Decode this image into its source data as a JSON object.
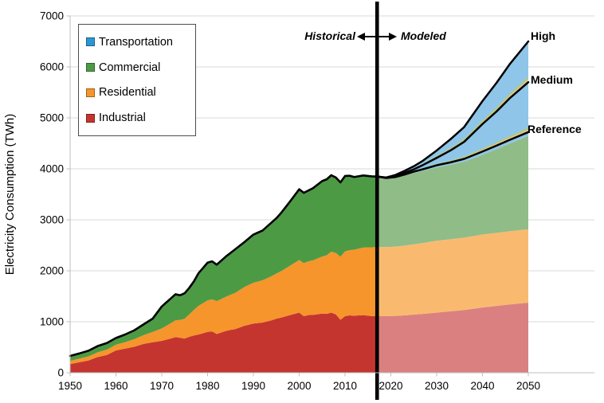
{
  "chart": {
    "y_axis_title": "Electricity Consumption (TWh)",
    "y_ticks": [
      0,
      1000,
      2000,
      3000,
      4000,
      5000,
      6000,
      7000
    ],
    "x_ticks": [
      1950,
      1960,
      1970,
      1980,
      1990,
      2000,
      2010,
      2020,
      2030,
      2040,
      2050
    ],
    "annotation": {
      "historical": "Historical",
      "modeled": "Modeled"
    },
    "scenario_labels": {
      "high": "High",
      "medium": "Medium",
      "reference": "Reference"
    },
    "legend": {
      "items": [
        {
          "label": "Transportation",
          "color": "#2D96D2"
        },
        {
          "label": "Commercial",
          "color": "#4D9A45"
        },
        {
          "label": "Residential",
          "color": "#F6952B"
        },
        {
          "label": "Industrial",
          "color": "#C5352F"
        }
      ]
    },
    "colors": {
      "historical_industrial": "#C5352F",
      "historical_residential": "#F6952B",
      "historical_commercial": "#4D9A45",
      "transportation_blue": "#2D96D2",
      "modeled_industrial": "#DB8080",
      "modeled_residential": "#F9BA70",
      "modeled_commercial": "#90BC87",
      "modeled_transportation": "#8FC5E9",
      "sliver_pink": "#E39898",
      "sliver_orange": "#F3C388",
      "sliver_green": "#A8C87E",
      "gridline": "#D9D9D9",
      "axis": "#BFBFBF",
      "line": "#000000"
    }
  },
  "chart_data": {
    "type": "area",
    "title": "",
    "ylabel": "Electricity Consumption (TWh)",
    "ylim": [
      0,
      7000
    ],
    "xlim": [
      1950,
      2050
    ],
    "grid": "horizontal",
    "legend_position": "upper-left",
    "divider_year": 2017,
    "historical": {
      "years": [
        1950,
        1952,
        1954,
        1956,
        1958,
        1960,
        1962,
        1964,
        1966,
        1968,
        1970,
        1972,
        1973,
        1974,
        1975,
        1976,
        1977,
        1978,
        1980,
        1981,
        1982,
        1984,
        1985,
        1986,
        1988,
        1990,
        1991,
        1992,
        1994,
        1995,
        1996,
        1998,
        2000,
        2001,
        2002,
        2003,
        2005,
        2006,
        2007,
        2008,
        2009,
        2010,
        2011,
        2012,
        2013,
        2014,
        2015,
        2016,
        2017
      ],
      "series": [
        {
          "name": "Industrial",
          "values": [
            170,
            205,
            240,
            308,
            348,
            438,
            472,
            510,
            565,
            598,
            625,
            672,
            700,
            685,
            670,
            705,
            730,
            750,
            800,
            810,
            760,
            820,
            840,
            855,
            920,
            965,
            975,
            985,
            1030,
            1060,
            1080,
            1130,
            1180,
            1110,
            1130,
            1135,
            1160,
            1155,
            1180,
            1145,
            1040,
            1110,
            1125,
            1120,
            1125,
            1130,
            1120,
            1110,
            1110
          ]
        },
        {
          "name": "Residential",
          "values": [
            62,
            70,
            80,
            93,
            104,
            113,
            128,
            148,
            172,
            200,
            245,
            300,
            330,
            350,
            390,
            440,
            500,
            560,
            620,
            630,
            645,
            670,
            690,
            710,
            760,
            800,
            815,
            830,
            865,
            885,
            910,
            970,
            1030,
            1040,
            1055,
            1070,
            1120,
            1150,
            1195,
            1205,
            1235,
            1270,
            1280,
            1295,
            1310,
            1325,
            1340,
            1350,
            1360
          ]
        },
        {
          "name": "Commercial",
          "values": [
            98,
            103,
            112,
            122,
            130,
            131,
            150,
            174,
            210,
            262,
            430,
            488,
            510,
            485,
            500,
            520,
            560,
            640,
            740,
            745,
            715,
            790,
            820,
            855,
            880,
            945,
            960,
            975,
            1055,
            1085,
            1140,
            1260,
            1390,
            1380,
            1390,
            1415,
            1480,
            1490,
            1500,
            1480,
            1460,
            1480,
            1460,
            1425,
            1420,
            1415,
            1400,
            1390,
            1380
          ]
        },
        {
          "name": "Transportation",
          "values": [
            0,
            0,
            0,
            0,
            0,
            0,
            0,
            0,
            0,
            0,
            0,
            0,
            0,
            0,
            0,
            0,
            0,
            0,
            0,
            0,
            0,
            0,
            0,
            0,
            0,
            0,
            0,
            0,
            0,
            0,
            0,
            0,
            0,
            0,
            0,
            0,
            0,
            0,
            0,
            0,
            0,
            0,
            0,
            0,
            0,
            0,
            0,
            0,
            0
          ]
        }
      ]
    },
    "modeled": {
      "years": [
        2017,
        2019,
        2021,
        2023,
        2025,
        2027,
        2030,
        2033,
        2036,
        2040,
        2043,
        2046,
        2050
      ],
      "reference_stack": [
        {
          "name": "Industrial",
          "values": [
            1110,
            1110,
            1115,
            1125,
            1140,
            1155,
            1180,
            1205,
            1230,
            1280,
            1310,
            1340,
            1375
          ]
        },
        {
          "name": "Residential",
          "values": [
            1360,
            1355,
            1360,
            1370,
            1380,
            1390,
            1410,
            1415,
            1420,
            1430,
            1435,
            1438,
            1440
          ]
        },
        {
          "name": "Commercial",
          "values": [
            1380,
            1350,
            1355,
            1375,
            1400,
            1415,
            1440,
            1460,
            1490,
            1565,
            1640,
            1720,
            1830
          ]
        },
        {
          "name": "Transportation",
          "values": [
            0,
            5,
            10,
            18,
            25,
            32,
            40,
            47,
            55,
            65,
            68,
            72,
            75
          ]
        }
      ],
      "scenarios": [
        {
          "name": "Reference",
          "totals": [
            3850,
            3820,
            3840,
            3888,
            3945,
            3992,
            4070,
            4127,
            4195,
            4340,
            4453,
            4570,
            4720
          ],
          "value_2050": 4720
        },
        {
          "name": "Medium",
          "totals": [
            3850,
            3825,
            3860,
            3920,
            3990,
            4075,
            4215,
            4360,
            4530,
            4880,
            5120,
            5390,
            5700
          ],
          "value_2050": 5700
        },
        {
          "name": "High",
          "totals": [
            3850,
            3830,
            3880,
            3960,
            4050,
            4160,
            4360,
            4580,
            4820,
            5330,
            5680,
            6060,
            6500
          ],
          "value_2050": 6500
        }
      ]
    }
  }
}
